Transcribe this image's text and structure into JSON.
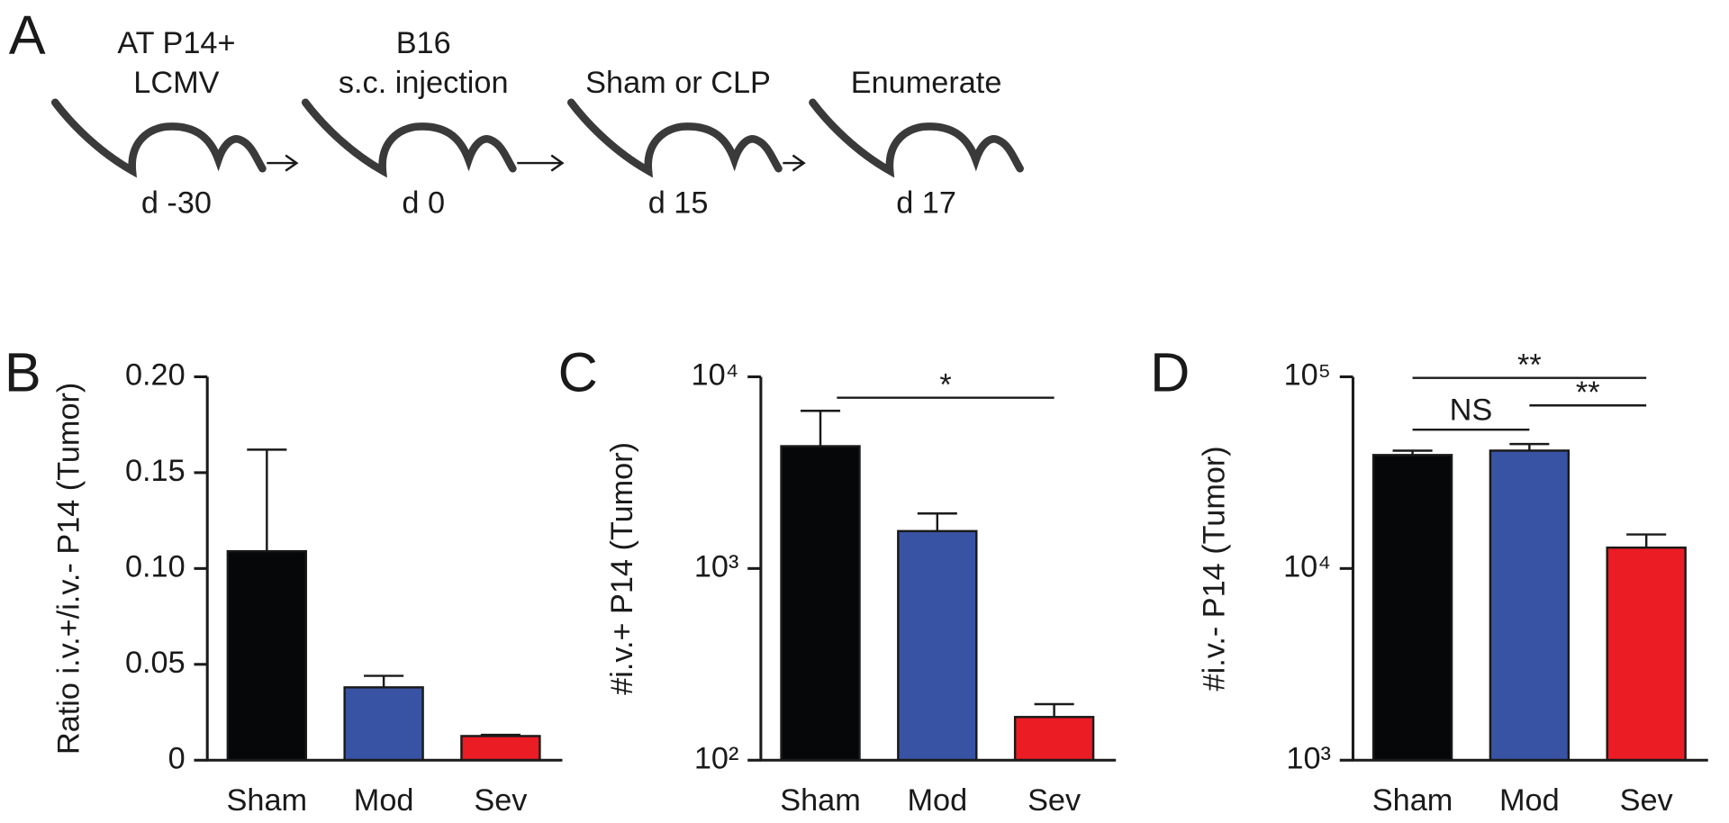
{
  "timeline": {
    "panel": "A",
    "steps": [
      {
        "label": [
          "AT P14+",
          "LCMV"
        ],
        "day": "d -30"
      },
      {
        "label": [
          "B16",
          "s.c. injection"
        ],
        "day": "d 0"
      },
      {
        "label": [
          "Sham or CLP"
        ],
        "day": "d 15"
      },
      {
        "label": [
          "Enumerate"
        ],
        "day": "d 17"
      }
    ]
  },
  "chart_data": [
    {
      "panel": "B",
      "type": "bar",
      "y_label": "Ratio i.v.+/i.v.- P14 (Tumor)",
      "categories": [
        "Sham",
        "Mod",
        "Sev"
      ],
      "values": [
        0.109,
        0.038,
        0.0126
      ],
      "errors": [
        0.053,
        0.006,
        0.0006
      ],
      "colors": [
        "#050708",
        "#3953a4",
        "#ec1c24"
      ],
      "log_scale": false,
      "ylim": [
        0,
        0.2
      ],
      "yticks": [
        0,
        0.05,
        {
          "value": 0.1,
          "label": "0.10"
        },
        0.15,
        {
          "value": 0.2,
          "label": "0.20"
        }
      ],
      "annotations": []
    },
    {
      "panel": "C",
      "type": "bar",
      "y_label": "#i.v.+ P14 (Tumor)",
      "categories": [
        "Sham",
        "Mod",
        "Sev"
      ],
      "values": [
        4345,
        1567,
        168
      ],
      "errors": [
        2300,
        370,
        28
      ],
      "colors": [
        "#050708",
        "#3953a4",
        "#ec1c24"
      ],
      "log_scale": true,
      "ylim": [
        100,
        10000
      ],
      "yticks": [
        {
          "value": 100,
          "label": "10²"
        },
        {
          "value": 1000,
          "label": "10³"
        },
        {
          "value": 10000,
          "label": "10⁴"
        }
      ],
      "annotations": [
        {
          "text": "*",
          "between": [
            "Sham",
            "Sev"
          ]
        }
      ]
    },
    {
      "panel": "D",
      "type": "bar",
      "y_label": "#i.v.- P14 (Tumor)",
      "categories": [
        "Sham",
        "Mod",
        "Sev"
      ],
      "values": [
        39080,
        41200,
        12850
      ],
      "errors": [
        2100,
        3400,
        2200
      ],
      "colors": [
        "#050708",
        "#3953a4",
        "#ec1c24"
      ],
      "log_scale": true,
      "ylim": [
        1000,
        100000
      ],
      "yticks": [
        {
          "value": 1000,
          "label": "10³"
        },
        {
          "value": 10000,
          "label": "10⁴"
        },
        {
          "value": 100000,
          "label": "10⁵"
        }
      ],
      "annotations": [
        {
          "text": "**",
          "between": [
            "Sham",
            "Sev"
          ]
        },
        {
          "text": "NS",
          "between": [
            "Sham",
            "Mod"
          ]
        },
        {
          "text": "**",
          "between": [
            "Mod",
            "Sev"
          ]
        }
      ]
    }
  ]
}
